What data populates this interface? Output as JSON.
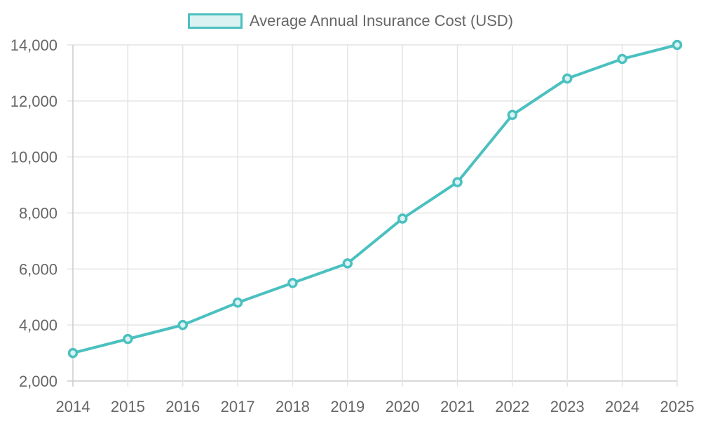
{
  "legend": {
    "label": "Average Annual Insurance Cost (USD)",
    "border_color": "#4bc0c0",
    "fill_color": "#dbf2f2"
  },
  "chart_data": {
    "type": "line",
    "title": "",
    "xlabel": "",
    "ylabel": "",
    "categories": [
      "2014",
      "2015",
      "2016",
      "2017",
      "2018",
      "2019",
      "2020",
      "2021",
      "2022",
      "2023",
      "2024",
      "2025"
    ],
    "series": [
      {
        "name": "Average Annual Insurance Cost (USD)",
        "values": [
          3000,
          3500,
          4000,
          4800,
          5500,
          6200,
          7800,
          9100,
          11500,
          12800,
          13500,
          14000
        ],
        "color": "#4bc0c0"
      }
    ],
    "ylim": [
      2000,
      14000
    ],
    "yticks": [
      "2,000",
      "4,000",
      "6,000",
      "8,000",
      "10,000",
      "12,000",
      "14,000"
    ],
    "ytick_values": [
      2000,
      4000,
      6000,
      8000,
      10000,
      12000,
      14000
    ],
    "grid": true,
    "legend_position": "top"
  }
}
